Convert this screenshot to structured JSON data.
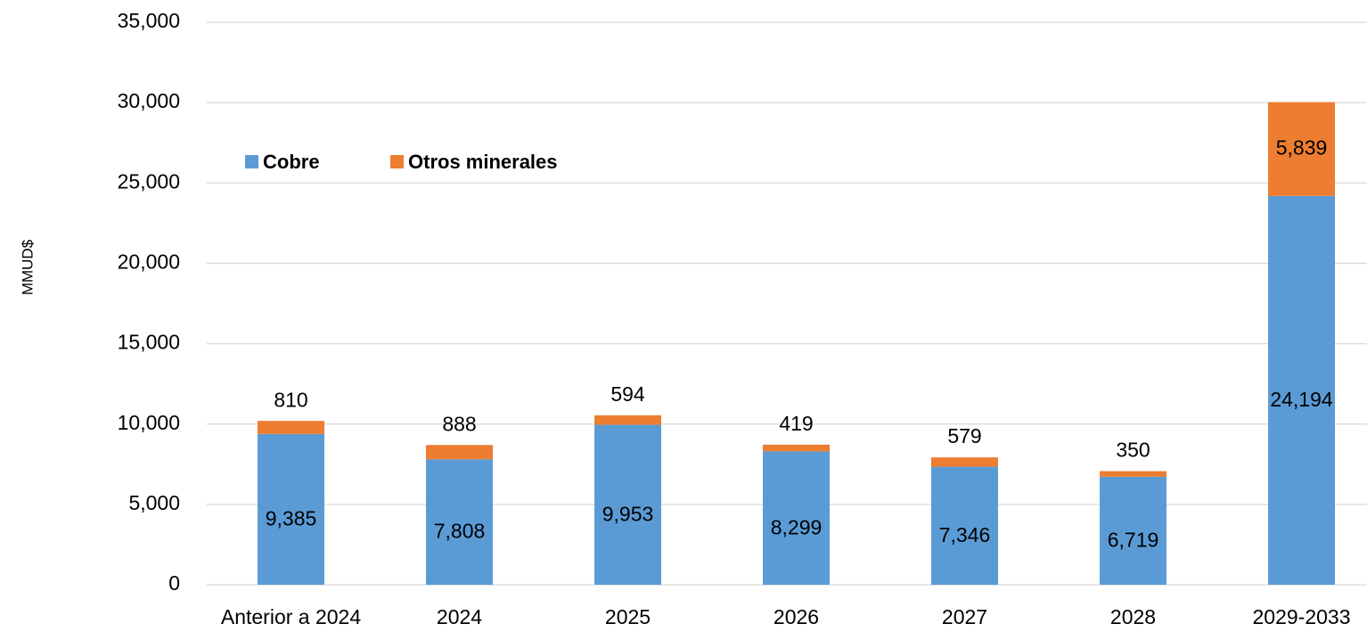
{
  "chart_data": {
    "type": "stacked_bar",
    "y_label": "MMUD$",
    "categories": [
      "Anterior a 2024",
      "2024",
      "2025",
      "2026",
      "2027",
      "2028",
      "2029-2033"
    ],
    "series": [
      {
        "name": "Cobre",
        "color": "#5b9bd5",
        "values": [
          9385,
          7808,
          9953,
          8299,
          7346,
          6719,
          24194
        ],
        "value_labels": [
          "9,385",
          "7,808",
          "9,953",
          "8,299",
          "7,346",
          "6,719",
          "24,194"
        ]
      },
      {
        "name": "Otros minerales",
        "color": "#ed7d31",
        "values": [
          810,
          888,
          594,
          419,
          579,
          350,
          5839
        ],
        "value_labels": [
          "810",
          "888",
          "594",
          "419",
          "579",
          "350",
          "5,839"
        ]
      }
    ],
    "ylim": [
      0,
      35000
    ],
    "yticks": [
      0,
      {
        "value": 5000,
        "label": "5,000"
      },
      {
        "value": 10000,
        "label": "10,000"
      },
      {
        "value": 15000,
        "label": "15,000"
      },
      {
        "value": 20000,
        "label": "20,000"
      },
      {
        "value": 25000,
        "label": "25,000"
      },
      {
        "value": 30000,
        "label": "30,000"
      },
      {
        "value": 35000,
        "label": "35,000"
      }
    ],
    "grid": true,
    "legend": "top-left"
  }
}
